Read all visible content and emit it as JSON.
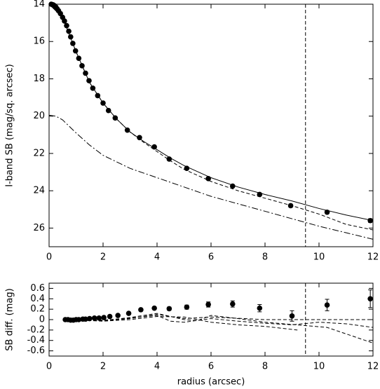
{
  "chart_data": [
    {
      "type": "scatter",
      "ylabel": "I-band SB (mag/sq. arcsec)",
      "xlim": [
        0,
        12
      ],
      "xticks": [
        0,
        2,
        4,
        6,
        8,
        10,
        12
      ],
      "ylim": [
        14,
        27
      ],
      "yticks": [
        14,
        16,
        18,
        20,
        22,
        24,
        26
      ],
      "invert_y": true,
      "vline": 9.5,
      "color": "#000000",
      "x": [
        0.08,
        0.12,
        0.16,
        0.2,
        0.25,
        0.3,
        0.35,
        0.42,
        0.5,
        0.57,
        0.65,
        0.73,
        0.8,
        0.88,
        0.98,
        1.1,
        1.22,
        1.35,
        1.48,
        1.62,
        1.8,
        2.0,
        2.2,
        2.45,
        2.9,
        3.35,
        3.9,
        4.45,
        5.1,
        5.9,
        6.8,
        7.8,
        8.95,
        10.3,
        11.9
      ],
      "values": [
        14.0,
        14.02,
        14.04,
        14.08,
        14.15,
        14.25,
        14.35,
        14.5,
        14.7,
        14.9,
        15.15,
        15.45,
        15.75,
        16.1,
        16.5,
        16.9,
        17.3,
        17.7,
        18.1,
        18.5,
        18.9,
        19.3,
        19.7,
        20.1,
        20.75,
        21.15,
        21.65,
        22.3,
        22.8,
        23.35,
        23.75,
        24.2,
        24.8,
        25.15,
        25.6
      ],
      "errors": [
        0.02,
        0.02,
        0.02,
        0.02,
        0.02,
        0.02,
        0.02,
        0.02,
        0.02,
        0.02,
        0.02,
        0.02,
        0.02,
        0.02,
        0.02,
        0.02,
        0.02,
        0.02,
        0.02,
        0.02,
        0.02,
        0.02,
        0.02,
        0.02,
        0.02,
        0.02,
        0.03,
        0.03,
        0.03,
        0.04,
        0.04,
        0.06,
        0.08,
        0.08,
        0.1
      ],
      "lines": [
        {
          "style": "solid",
          "x": [
            0,
            0.5,
            1,
            1.5,
            2,
            2.5,
            3,
            3.5,
            4,
            4.5,
            5,
            6,
            7,
            8,
            9,
            10,
            11,
            12
          ],
          "values": [
            14.0,
            14.7,
            16.55,
            18.2,
            19.3,
            20.15,
            20.85,
            21.35,
            21.8,
            22.25,
            22.65,
            23.3,
            23.8,
            24.2,
            24.55,
            24.95,
            25.3,
            25.6
          ]
        },
        {
          "style": "dashed",
          "x": [
            0,
            0.5,
            1,
            1.5,
            2,
            2.5,
            3,
            3.5,
            4,
            4.5,
            5,
            6,
            7,
            8,
            9,
            10,
            11,
            12
          ],
          "values": [
            14.0,
            14.7,
            16.55,
            18.2,
            19.3,
            20.15,
            20.85,
            21.4,
            21.9,
            22.4,
            22.85,
            23.5,
            24.0,
            24.4,
            24.8,
            25.25,
            25.8,
            26.1
          ]
        },
        {
          "style": "dashdot",
          "x": [
            0,
            0.25,
            0.5,
            1,
            1.5,
            2,
            3,
            4,
            5,
            6,
            7,
            8,
            9,
            10,
            11,
            12
          ],
          "values": [
            19.95,
            20.0,
            20.2,
            20.9,
            21.55,
            22.1,
            22.8,
            23.3,
            23.8,
            24.3,
            24.7,
            25.1,
            25.5,
            25.9,
            26.25,
            26.6
          ]
        }
      ]
    },
    {
      "type": "scatter",
      "ylabel": "SB diff. (mag)",
      "xlabel": "radius (arcsec)",
      "xlim": [
        0,
        12
      ],
      "xticks": [
        0,
        2,
        4,
        6,
        8,
        10,
        12
      ],
      "ylim": [
        -0.7,
        0.7
      ],
      "yticks": [
        0.6,
        0.4,
        0.2,
        0,
        -0.2,
        -0.4,
        -0.6
      ],
      "vline": 9.5,
      "color": "#000000",
      "x": [
        0.6,
        0.7,
        0.8,
        0.9,
        1.0,
        1.1,
        1.25,
        1.35,
        1.5,
        1.68,
        1.85,
        2.03,
        2.25,
        2.55,
        2.95,
        3.4,
        3.9,
        4.45,
        5.1,
        5.9,
        6.8,
        7.8,
        9.0,
        10.3,
        11.9
      ],
      "values": [
        0,
        0,
        -0.01,
        -0.01,
        0,
        0,
        0.01,
        0.01,
        0.02,
        0.03,
        0.03,
        0.04,
        0.06,
        0.08,
        0.12,
        0.19,
        0.22,
        0.21,
        0.24,
        0.29,
        0.3,
        0.22,
        0.07,
        0.28,
        0.4
      ],
      "errors": [
        0.01,
        0.01,
        0.01,
        0.01,
        0.01,
        0.01,
        0.01,
        0.01,
        0.01,
        0.01,
        0.01,
        0.01,
        0.01,
        0.02,
        0.02,
        0.02,
        0.02,
        0.03,
        0.04,
        0.05,
        0.06,
        0.07,
        0.1,
        0.11,
        0.17
      ],
      "lines": [
        {
          "style": "dashed",
          "x": [
            0.6,
            2,
            3,
            4,
            5,
            6,
            7,
            8,
            9.2
          ],
          "values": [
            0,
            -0.03,
            0,
            0.06,
            0.05,
            -0.05,
            -0.1,
            -0.13,
            -0.2
          ]
        },
        {
          "style": "dashed",
          "x": [
            0.6,
            2,
            3,
            4,
            5,
            6,
            8,
            10,
            12
          ],
          "values": [
            0,
            -0.02,
            0.02,
            0.1,
            0.02,
            0.05,
            0,
            0,
            0
          ]
        },
        {
          "style": "dashed",
          "x": [
            0.6,
            2,
            3,
            4,
            5,
            5.5,
            6,
            7,
            8,
            10.3,
            12
          ],
          "values": [
            0,
            -0.02,
            0.04,
            0.12,
            0,
            -0.02,
            0.08,
            0.02,
            -0.05,
            -0.15,
            -0.45
          ]
        },
        {
          "style": "dashed",
          "x": [
            0.6,
            2,
            3,
            4,
            4.5,
            5,
            6,
            7,
            8,
            9,
            10,
            11,
            12
          ],
          "values": [
            0,
            -0.01,
            0.03,
            0.08,
            -0.03,
            -0.05,
            0.02,
            -0.03,
            -0.07,
            -0.1,
            -0.05,
            -0.08,
            -0.15
          ]
        }
      ]
    }
  ]
}
